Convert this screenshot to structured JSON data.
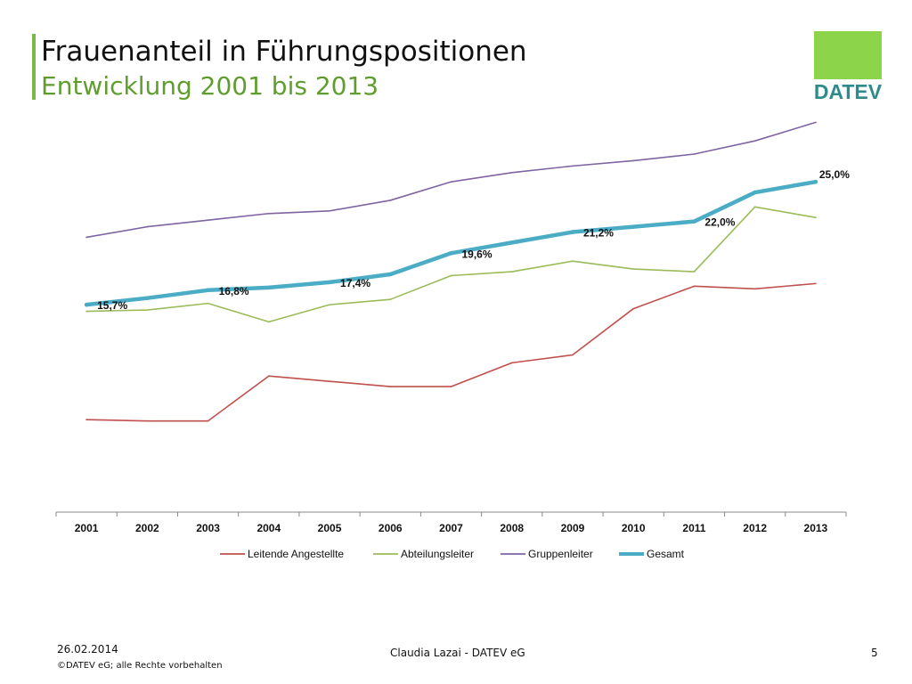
{
  "slide": {
    "title": "Frauenanteil in Führungspositionen",
    "subtitle": "Entwicklung 2001 bis 2013",
    "logo_text": "DATEV",
    "footer": {
      "date": "26.02.2014",
      "copyright": "©DATEV eG; alle Rechte vorbehalten",
      "author": "Claudia Lazai - DATEV eG",
      "page": "5"
    }
  },
  "colors": {
    "accent_green": "#7ab648",
    "logo_green": "#8cd54a",
    "logo_teal": "#2f8b8b"
  },
  "chart_data": {
    "type": "line",
    "title": "",
    "xlabel": "",
    "ylabel": "",
    "categories": [
      "2001",
      "2002",
      "2003",
      "2004",
      "2005",
      "2006",
      "2007",
      "2008",
      "2009",
      "2010",
      "2011",
      "2012",
      "2013"
    ],
    "ylim": [
      0,
      30
    ],
    "grid": false,
    "legend_position": "bottom",
    "series": [
      {
        "name": "Leitende Angestellte",
        "color": "#c0504d",
        "width": 1.6,
        "values": [
          7.0,
          6.9,
          6.9,
          10.3,
          9.9,
          9.5,
          9.5,
          11.3,
          11.9,
          15.4,
          17.1,
          16.9,
          17.3
        ]
      },
      {
        "name": "Abteilungsleiter",
        "color": "#9bbb59",
        "width": 1.6,
        "values": [
          15.2,
          15.3,
          15.8,
          14.4,
          15.7,
          16.1,
          17.9,
          18.2,
          19.0,
          18.4,
          18.2,
          23.1,
          22.3
        ]
      },
      {
        "name": "Gruppenleiter",
        "color": "#8064a2",
        "width": 1.6,
        "values": [
          20.8,
          21.6,
          22.1,
          22.6,
          22.8,
          23.6,
          25.0,
          25.7,
          26.2,
          26.6,
          27.1,
          28.1,
          29.5
        ]
      },
      {
        "name": "Gesamt",
        "color": "#4bacc6",
        "width": 4.5,
        "values": [
          15.7,
          16.2,
          16.8,
          17.0,
          17.4,
          18.0,
          19.6,
          20.4,
          21.2,
          21.6,
          22.0,
          24.2,
          25.0
        ],
        "labels": [
          "15,7%",
          "",
          "16,8%",
          "",
          "17,4%",
          "",
          "19,6%",
          "",
          "21,2%",
          "",
          "22,0%",
          "",
          "25,0%"
        ]
      }
    ]
  }
}
